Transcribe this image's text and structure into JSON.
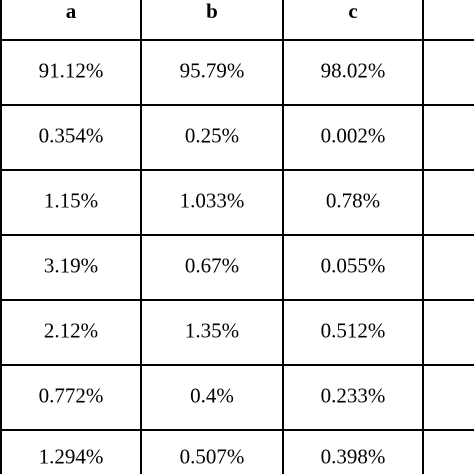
{
  "table": {
    "header": [
      "a",
      "b",
      "c"
    ],
    "rows": [
      [
        "91.12%",
        "95.79%",
        "98.02%"
      ],
      [
        "0.354%",
        "0.25%",
        "0.002%"
      ],
      [
        "1.15%",
        "1.033%",
        "0.78%"
      ],
      [
        "3.19%",
        "0.67%",
        "0.055%"
      ],
      [
        "2.12%",
        "1.35%",
        "0.512%"
      ],
      [
        "0.772%",
        "0.4%",
        "0.233%"
      ],
      [
        "1.294%",
        "0.507%",
        "0.398%"
      ]
    ]
  }
}
